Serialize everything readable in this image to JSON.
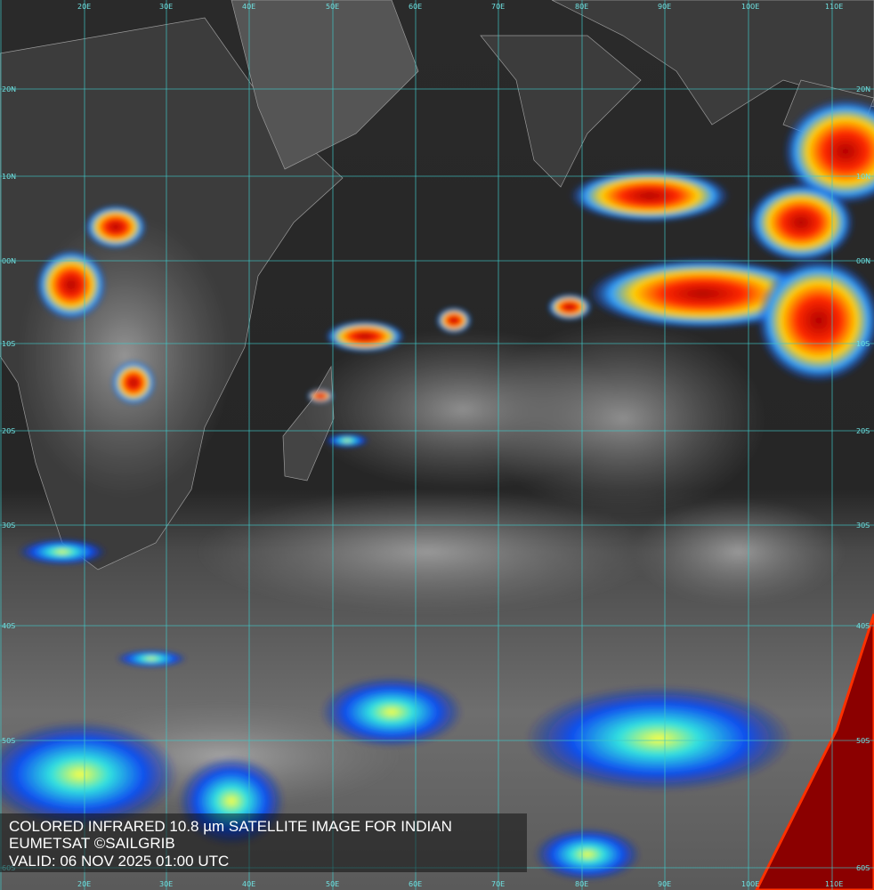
{
  "map": {
    "longitude_labels": [
      "E",
      "20E",
      "30E",
      "40E",
      "50E",
      "60E",
      "70E",
      "80E",
      "90E",
      "100E",
      "110E"
    ],
    "latitude_labels": [
      "20N",
      "10N",
      "00N",
      "10S",
      "20S",
      "30S",
      "40S",
      "50S",
      "60S"
    ],
    "caption": [
      "COLORED INFRARED 10.8 µm SATELLITE IMAGE FOR INDIAN",
      "EUMETSAT ©SAILGRIB",
      "VALID:  06 NOV 2025 01:00 UTC"
    ]
  }
}
